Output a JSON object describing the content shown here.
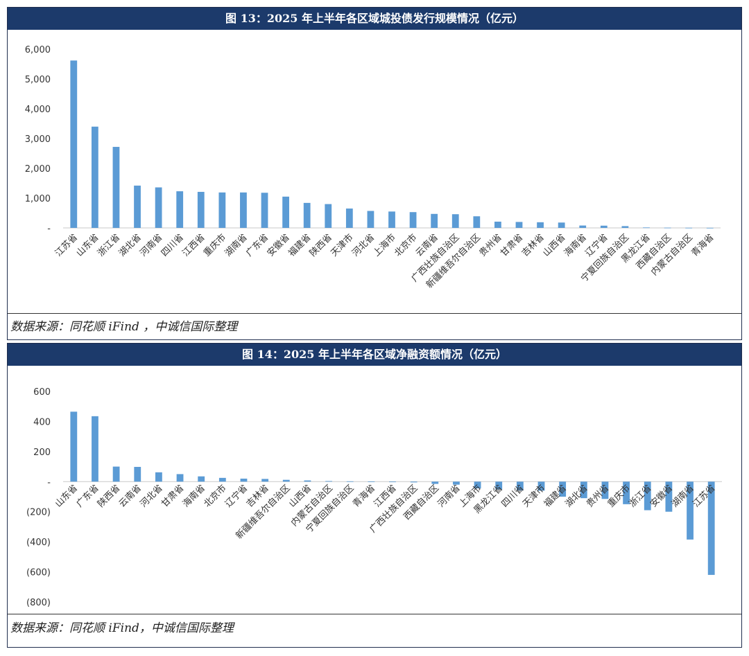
{
  "colors": {
    "bar": "#5b9bd5",
    "title_bg": "#1c3a6b",
    "title_text": "#ffffff",
    "axis": "#c8c8c8",
    "tick_text": "#333333"
  },
  "chart_data": [
    {
      "type": "bar",
      "title": "图 13：2025 年上半年各区域城投债发行规模情况（亿元）",
      "ylim": [
        0,
        6000
      ],
      "yticks": [
        0,
        1000,
        2000,
        3000,
        4000,
        5000,
        6000
      ],
      "ytick_labels": [
        "-",
        "1,000",
        "2,000",
        "3,000",
        "4,000",
        "5,000",
        "6,000"
      ],
      "grid": false,
      "categories": [
        "江苏省",
        "山东省",
        "浙江省",
        "湖北省",
        "河南省",
        "四川省",
        "江西省",
        "重庆市",
        "湖南省",
        "广东省",
        "安徽省",
        "福建省",
        "陕西省",
        "天津市",
        "河北省",
        "上海市",
        "北京市",
        "云南省",
        "广西壮族自治区",
        "新疆维吾尔自治区",
        "贵州省",
        "甘肃省",
        "吉林省",
        "山西省",
        "海南省",
        "辽宁省",
        "宁夏回族自治区",
        "黑龙江省",
        "西藏自治区",
        "内蒙古自治区",
        "青海省"
      ],
      "values": [
        5620,
        3400,
        2720,
        1420,
        1360,
        1230,
        1210,
        1190,
        1190,
        1180,
        1050,
        840,
        800,
        650,
        570,
        550,
        530,
        470,
        460,
        390,
        210,
        200,
        190,
        180,
        80,
        75,
        60,
        15,
        8,
        5,
        3
      ],
      "source": "数据来源：同花顺 iFind ，中诚信国际整理"
    },
    {
      "type": "bar",
      "title": "图 14：2025 年上半年各区域净融资额情况（亿元）",
      "ylim": [
        -800,
        600
      ],
      "yticks": [
        -800,
        -600,
        -400,
        -200,
        0,
        200,
        400,
        600
      ],
      "ytick_labels": [
        "(800)",
        "(600)",
        "(400)",
        "(200)",
        "-",
        "200",
        "400",
        "600"
      ],
      "grid": false,
      "categories": [
        "山东省",
        "广东省",
        "陕西省",
        "云南省",
        "河北省",
        "甘肃省",
        "海南省",
        "北京市",
        "辽宁省",
        "吉林省",
        "新疆维吾尔自治区",
        "山西省",
        "内蒙古自治区",
        "宁夏回族自治区",
        "青海省",
        "江西省",
        "广西壮族自治区",
        "西藏自治区",
        "河南省",
        "上海市",
        "黑龙江省",
        "四川省",
        "天津市",
        "福建省",
        "湖北省",
        "贵州省",
        "重庆市",
        "浙江省",
        "安徽省",
        "湖南省",
        "江苏省"
      ],
      "values": [
        465,
        435,
        100,
        98,
        62,
        50,
        35,
        25,
        20,
        18,
        12,
        8,
        4,
        2,
        1,
        -2,
        -5,
        -15,
        -20,
        -45,
        -52,
        -58,
        -60,
        -100,
        -110,
        -115,
        -150,
        -190,
        -200,
        -385,
        -620
      ],
      "source": "数据来源：同花顺 iFind，中诚信国际整理"
    }
  ]
}
